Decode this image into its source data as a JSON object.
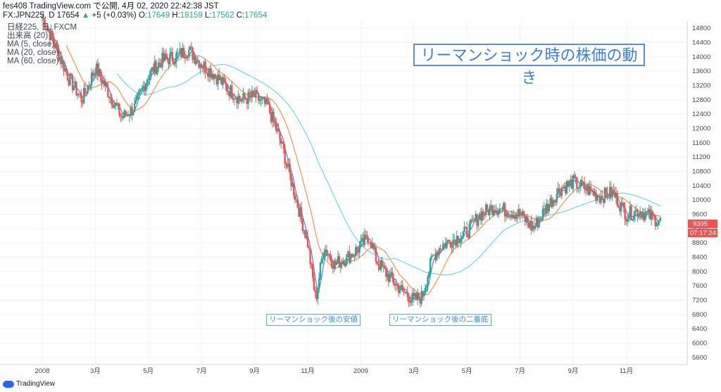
{
  "header": {
    "line1": "fes408 TradingView.com で公開, 4月 02, 2020 22:42:38 JST",
    "line2_prefix": "FX:JPN225, D 17654",
    "change": "+5 (+0.03%)",
    "o_label": "O:",
    "o": "17649",
    "h_label": "H:",
    "h": "18159",
    "l_label": "L:",
    "l": "17562",
    "c_label": "C:",
    "c": "17654"
  },
  "legend": {
    "symbol": "日経225, 日, FXCM",
    "volume": "出来高 (20)",
    "ma5": "MA (5, close)",
    "ma20": "MA (20, close)",
    "ma60": "MA (60, close)"
  },
  "callout": "リーマンショック時の株価の動き",
  "notes": [
    "リーマンショック後の安値",
    "リーマンショック後の二番底"
  ],
  "price_badge": "9395",
  "time_badge": "07:17:24",
  "footer": {
    "brand": "TradingView"
  },
  "colors": {
    "up": "#26a69a",
    "down": "#ef5350",
    "ma5": "#5b6fd6",
    "ma20": "#f7893b",
    "ma60": "#66d3ea",
    "badge": "#ef5350"
  },
  "chart_data": {
    "type": "candlestick",
    "ylim": [
      5400,
      15000
    ],
    "y_ticks": [
      14800,
      14400,
      14000,
      13600,
      13200,
      12800,
      12400,
      12000,
      11600,
      11200,
      10800,
      10400,
      10000,
      9600,
      9200,
      8800,
      8400,
      8000,
      7600,
      7200,
      6800,
      6400,
      6000,
      5600
    ],
    "x_tick_labels": [
      "2008",
      "3月",
      "5月",
      "7月",
      "9月",
      "11月",
      "2009",
      "3月",
      "5月",
      "7月",
      "9月",
      "11月"
    ],
    "x_ticks_month_index": [
      0,
      2,
      4,
      6,
      8,
      10,
      12,
      14,
      16,
      18,
      20,
      22
    ],
    "series": [
      {
        "name": "MA (5, close)",
        "values": []
      },
      {
        "name": "MA (20, close)",
        "values": []
      },
      {
        "name": "MA (60, close)",
        "values": []
      }
    ],
    "close_path_months": [
      [
        0,
        15100
      ],
      [
        0.5,
        14300
      ],
      [
        1,
        13400
      ],
      [
        1.5,
        12800
      ],
      [
        2,
        13700
      ],
      [
        2.5,
        13000
      ],
      [
        3,
        12300
      ],
      [
        3.5,
        12600
      ],
      [
        4,
        13500
      ],
      [
        4.5,
        13900
      ],
      [
        5,
        14000
      ],
      [
        5.5,
        14200
      ],
      [
        6,
        13800
      ],
      [
        6.5,
        13500
      ],
      [
        7,
        13100
      ],
      [
        7.5,
        12800
      ],
      [
        8,
        12900
      ],
      [
        8.5,
        12600
      ],
      [
        9,
        11600
      ],
      [
        9.5,
        10200
      ],
      [
        10,
        8800
      ],
      [
        10.3,
        7200
      ],
      [
        10.6,
        8700
      ],
      [
        11,
        8200
      ],
      [
        11.5,
        8400
      ],
      [
        12,
        8700
      ],
      [
        12.3,
        9000
      ],
      [
        12.6,
        8300
      ],
      [
        13,
        7900
      ],
      [
        13.5,
        7500
      ],
      [
        14,
        7200
      ],
      [
        14.3,
        7300
      ],
      [
        14.7,
        8400
      ],
      [
        15,
        8700
      ],
      [
        15.5,
        8900
      ],
      [
        16,
        9100
      ],
      [
        16.5,
        9600
      ],
      [
        17,
        9800
      ],
      [
        17.5,
        9700
      ],
      [
        18,
        9600
      ],
      [
        18.5,
        9200
      ],
      [
        19,
        9800
      ],
      [
        19.5,
        10300
      ],
      [
        20,
        10500
      ],
      [
        20.5,
        10300
      ],
      [
        21,
        10100
      ],
      [
        21.5,
        10200
      ],
      [
        22,
        9600
      ],
      [
        22.5,
        9700
      ],
      [
        23,
        9500
      ],
      [
        23.3,
        9395
      ]
    ]
  }
}
